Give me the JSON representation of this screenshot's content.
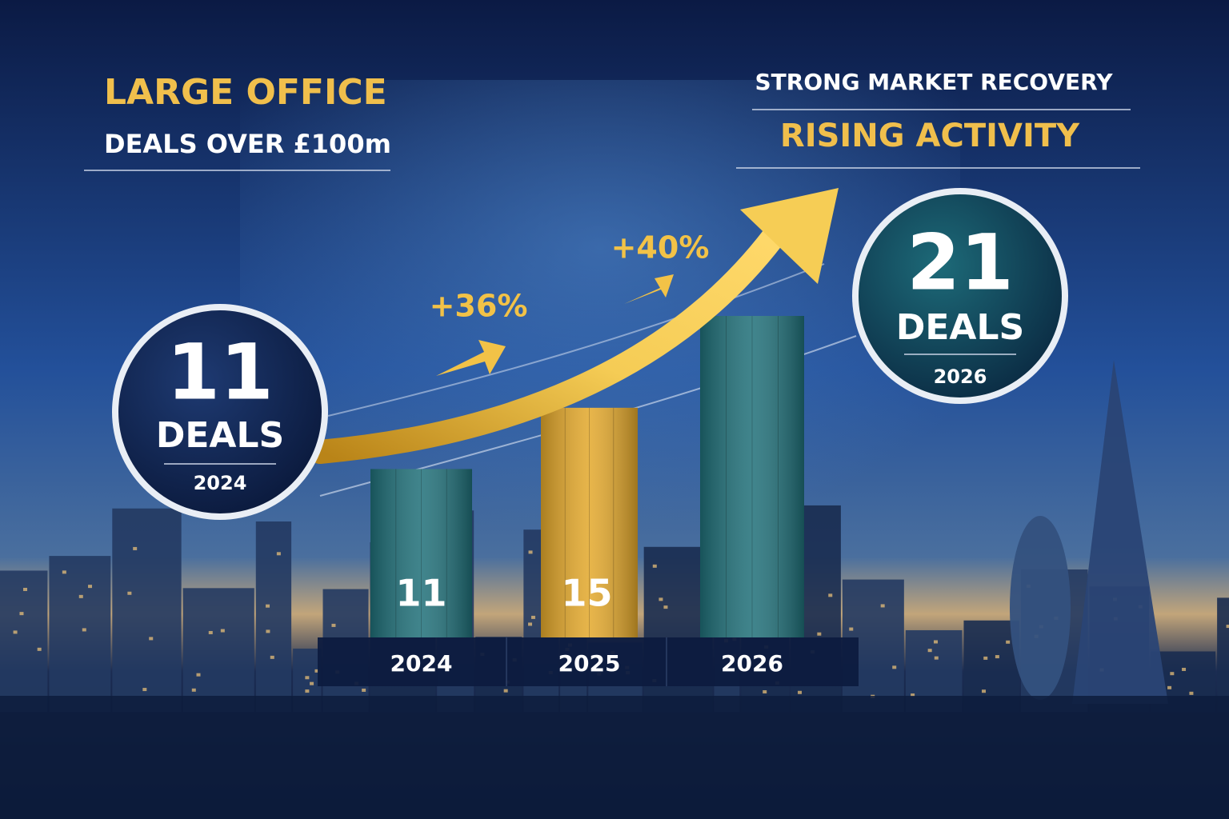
{
  "chart_data": {
    "type": "bar",
    "title": "LARGE OFFICE",
    "subtitle": "DEALS OVER £100m",
    "headline": "STRONG MARKET RECOVERY",
    "subheadline": "RISING ACTIVITY",
    "categories": [
      "2024",
      "2025",
      "2026"
    ],
    "values": [
      11,
      15,
      21
    ],
    "colors": [
      "#1f6f78",
      "#e3a82b",
      "#1f6f78"
    ],
    "badge_unit": "DEALS",
    "growth_labels": [
      "+36%",
      "+40%"
    ]
  }
}
